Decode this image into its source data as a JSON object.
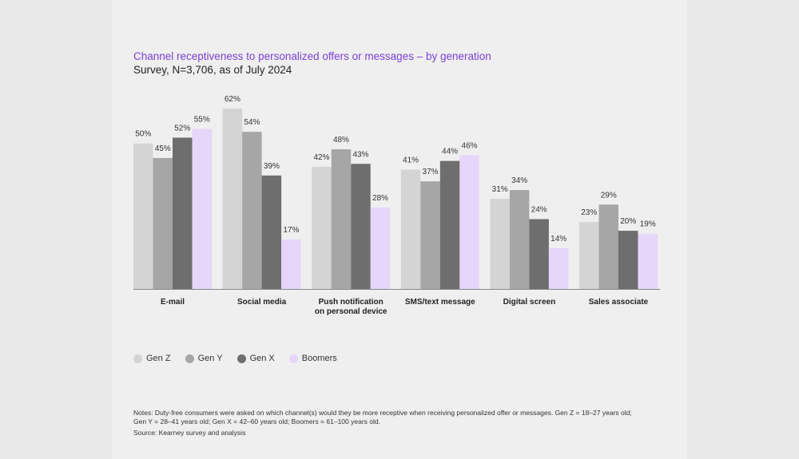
{
  "colors": {
    "gen_z": "#d4d4d4",
    "gen_y": "#a6a6a6",
    "gen_x": "#6e6e6e",
    "boomers": "#e5d6fa",
    "title": "#7b3fe4",
    "axis": "#888888"
  },
  "chart_data": {
    "type": "bar",
    "title": "Channel receptiveness to personalized offers or messages – by generation",
    "subtitle": "Survey, N=3,706, as of July 2024",
    "categories": [
      [
        "E-mail"
      ],
      [
        "Social media"
      ],
      [
        "Push notification",
        "on personal device"
      ],
      [
        "SMS/text message"
      ],
      [
        "Digital screen"
      ],
      [
        "Sales associate"
      ]
    ],
    "series": [
      {
        "name": "Gen Z",
        "values": [
          50,
          62,
          42,
          41,
          31,
          23
        ]
      },
      {
        "name": "Gen Y",
        "values": [
          45,
          54,
          48,
          37,
          34,
          29
        ]
      },
      {
        "name": "Gen X",
        "values": [
          52,
          39,
          43,
          44,
          24,
          20
        ]
      },
      {
        "name": "Boomers",
        "values": [
          55,
          17,
          28,
          46,
          14,
          19
        ]
      }
    ],
    "value_suffix": "%",
    "ylim": [
      0,
      62
    ],
    "xlabel": "",
    "ylabel": "",
    "legend_position": "bottom-left"
  },
  "notes": {
    "line1": "Notes: Duty-free consumers were asked on which channel(s) would they be more receptive when receiving personalized offer or messages. Gen Z = 18–27 years old;",
    "line2": "Gen Y = 28–41 years old; Gen X = 42–60 years old; Boomers = 61–100 years old.",
    "source": "Source: Kearney survey and analysis"
  }
}
